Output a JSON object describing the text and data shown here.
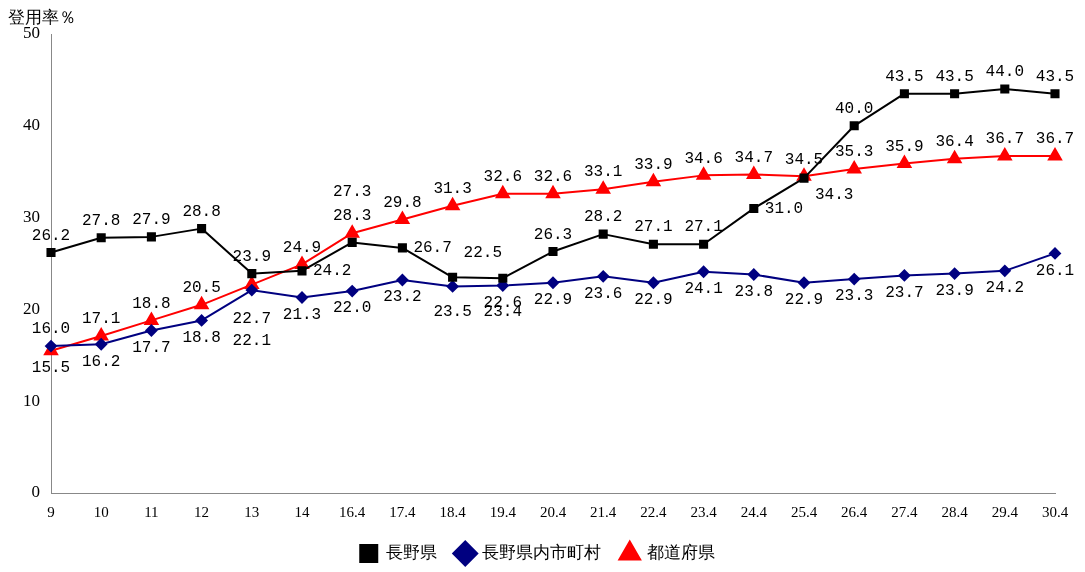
{
  "chart_data": {
    "type": "line",
    "ylabel": "登用率％",
    "categories": [
      "9",
      "10",
      "11",
      "12",
      "13",
      "14",
      "16.4",
      "17.4",
      "18.4",
      "19.4",
      "20.4",
      "21.4",
      "22.4",
      "23.4",
      "24.4",
      "25.4",
      "26.4",
      "27.4",
      "28.4",
      "29.4",
      "30.4"
    ],
    "series": [
      {
        "name": "長野県",
        "color": "#000000",
        "marker": "square",
        "values": [
          26.2,
          27.8,
          27.9,
          28.8,
          23.9,
          24.2,
          27.3,
          26.7,
          23.5,
          23.4,
          26.3,
          28.2,
          27.1,
          27.1,
          31.0,
          34.3,
          40.0,
          43.5,
          43.5,
          44.0,
          43.5
        ],
        "value_labels": [
          "26.2",
          "27.8",
          "27.9",
          "28.8",
          "23.9",
          "24.2",
          "27.3",
          "26.7",
          "23.5",
          "23.4",
          "26.3",
          "28.2",
          "27.1",
          "27.1",
          "31.0",
          "34.3",
          "40.0",
          "43.5",
          "43.5",
          "44.0",
          "43.5"
        ]
      },
      {
        "name": "長野県内市町村",
        "color": "#000080",
        "marker": "diamond",
        "values": [
          16.0,
          16.2,
          17.7,
          18.8,
          22.1,
          21.3,
          22.0,
          23.2,
          22.5,
          22.6,
          22.9,
          23.6,
          22.9,
          24.1,
          23.8,
          22.9,
          23.3,
          23.7,
          23.9,
          24.2,
          26.1
        ],
        "value_labels": [
          "16.0",
          "16.2",
          "17.7",
          "18.8",
          "22.1",
          "21.3",
          "22.0",
          "23.2",
          "22.5",
          "22.6",
          "22.9",
          "23.6",
          "22.9",
          "24.1",
          "23.8",
          "22.9",
          "23.3",
          "23.7",
          "23.9",
          "24.2",
          "26.1"
        ]
      },
      {
        "name": "都道府県",
        "color": "#ff0000",
        "marker": "triangle",
        "values": [
          15.5,
          17.1,
          18.8,
          20.5,
          22.7,
          24.9,
          28.3,
          29.8,
          31.3,
          32.6,
          32.6,
          33.1,
          33.9,
          34.6,
          34.7,
          34.5,
          35.3,
          35.9,
          36.4,
          36.7,
          36.7
        ],
        "value_labels": [
          "15.5",
          "17.1",
          "18.8",
          "20.5",
          "22.7",
          "24.9",
          "28.3",
          "29.8",
          "31.3",
          "32.6",
          "32.6",
          "33.1",
          "33.9",
          "34.6",
          "34.7",
          "34.5",
          "35.3",
          "35.9",
          "36.4",
          "36.7",
          "36.7"
        ]
      }
    ],
    "ylim": [
      0,
      50
    ],
    "yticks": [
      0,
      10,
      20,
      30,
      40,
      50
    ],
    "grid": false,
    "legend": "bottom"
  }
}
